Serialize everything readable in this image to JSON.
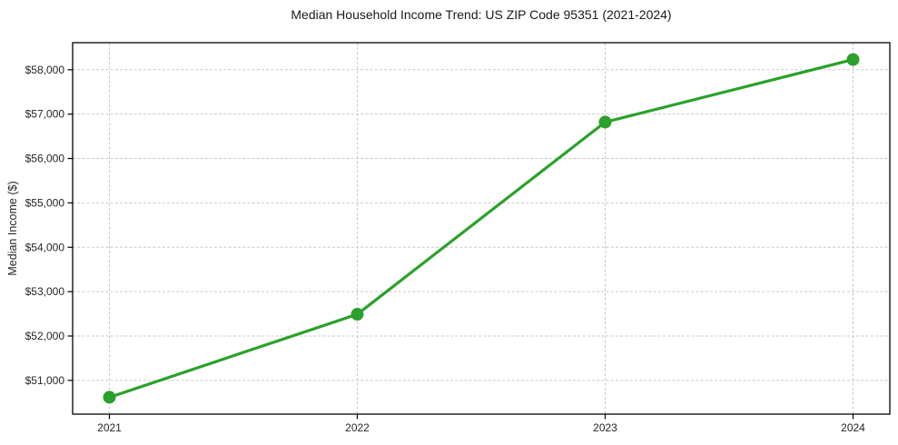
{
  "chart_data": {
    "type": "line",
    "title": "Median Household Income Trend: US ZIP Code 95351 (2021-2024)",
    "xlabel": "",
    "ylabel": "Median Income ($)",
    "categories": [
      "2021",
      "2022",
      "2023",
      "2024"
    ],
    "values": [
      50620,
      52490,
      56820,
      58230
    ],
    "ylim": [
      50240,
      58610
    ],
    "ytick_values": [
      51000,
      52000,
      53000,
      54000,
      55000,
      56000,
      57000,
      58000
    ],
    "ytick_labels": [
      "$51,000",
      "$52,000",
      "$53,000",
      "$54,000",
      "$55,000",
      "$56,000",
      "$57,000",
      "$58,000"
    ],
    "grid": "dashed-both-axes",
    "legend_position": "none",
    "line_color": "#2ca02c",
    "marker": "circle",
    "marker_color": "#2ca02c",
    "grid_color": "#c9c9c9",
    "axis_color": "#000000",
    "text_color": "#262626",
    "background_color": "#ffffff"
  }
}
